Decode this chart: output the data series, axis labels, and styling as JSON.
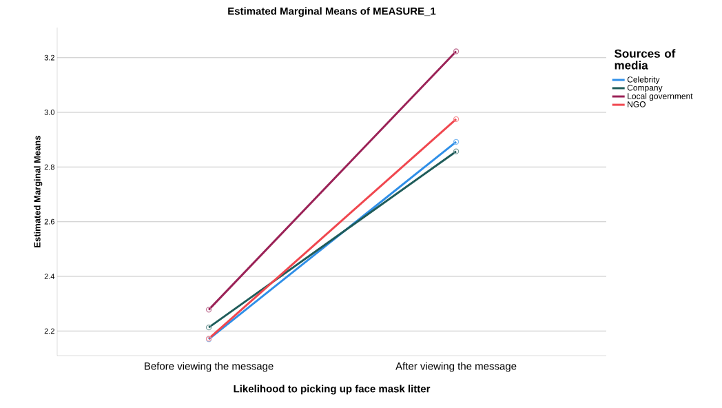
{
  "chart_data": {
    "type": "line",
    "title": "Estimated Marginal Means of MEASURE_1",
    "xlabel": "Likelihood to picking up face mask litter",
    "ylabel": "Estimated Marginal Means",
    "legend_title": "Sources of media",
    "categories": [
      "Before viewing the message",
      "After viewing the message"
    ],
    "series": [
      {
        "name": "Celebrity",
        "color": "#2f8fe8",
        "values": [
          2.17,
          2.892
        ]
      },
      {
        "name": "Company",
        "color": "#1f5c5a",
        "values": [
          2.213,
          2.857
        ]
      },
      {
        "name": "Local government",
        "color": "#9b2257",
        "values": [
          2.278,
          3.223
        ]
      },
      {
        "name": "NGO",
        "color": "#f0474f",
        "values": [
          2.172,
          2.975
        ]
      }
    ],
    "ylim": [
      2.11,
      3.31
    ],
    "yticks": [
      {
        "value": 2.2,
        "label": "2.2"
      },
      {
        "value": 2.4,
        "label": "2.4"
      },
      {
        "value": 2.6,
        "label": "2.6"
      },
      {
        "value": 2.8,
        "label": "2.8"
      },
      {
        "value": 3.0,
        "label": "3.0"
      },
      {
        "value": 3.2,
        "label": "3.2"
      }
    ],
    "grid": "y",
    "legend": "right",
    "marker": "circle",
    "line_style": "solid"
  }
}
